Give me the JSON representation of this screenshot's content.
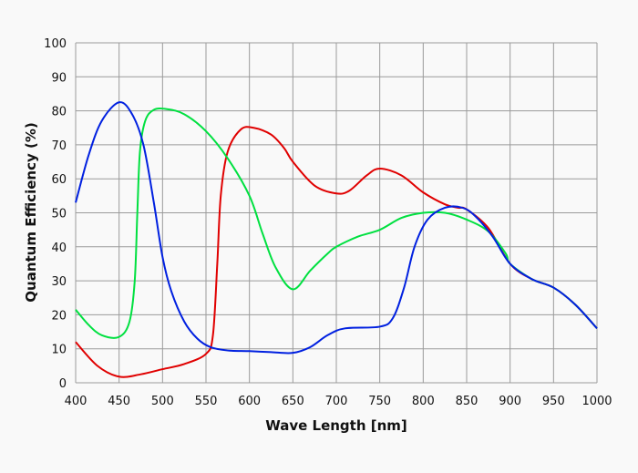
{
  "chart_data": {
    "type": "line",
    "title": "",
    "xlabel": "Wave Length [nm]",
    "ylabel": "Quantum Efficiency (%)",
    "xlim": [
      400,
      1000
    ],
    "ylim": [
      0,
      100
    ],
    "xticks": [
      400,
      450,
      500,
      550,
      600,
      650,
      700,
      750,
      800,
      850,
      900,
      950,
      1000
    ],
    "yticks": [
      0,
      10,
      20,
      30,
      40,
      50,
      60,
      70,
      80,
      90,
      100
    ],
    "grid": true,
    "legend": "none",
    "series": [
      {
        "color": "#e00000",
        "points": [
          [
            400,
            12
          ],
          [
            425,
            5
          ],
          [
            450,
            1.8
          ],
          [
            475,
            2.5
          ],
          [
            500,
            4
          ],
          [
            525,
            5.5
          ],
          [
            550,
            8.5
          ],
          [
            558,
            14
          ],
          [
            563,
            35
          ],
          [
            567,
            55
          ],
          [
            575,
            68
          ],
          [
            590,
            74.5
          ],
          [
            605,
            75
          ],
          [
            625,
            73
          ],
          [
            640,
            69
          ],
          [
            650,
            65
          ],
          [
            675,
            58
          ],
          [
            700,
            55.7
          ],
          [
            715,
            56.5
          ],
          [
            735,
            61
          ],
          [
            750,
            63
          ],
          [
            775,
            61
          ],
          [
            800,
            56
          ],
          [
            825,
            52.5
          ],
          [
            840,
            51.5
          ],
          [
            850,
            51
          ],
          [
            875,
            45.5
          ],
          [
            900,
            35
          ],
          [
            925,
            30.5
          ],
          [
            950,
            28
          ],
          [
            975,
            23
          ],
          [
            1000,
            16
          ]
        ]
      },
      {
        "color": "#00e040",
        "points": [
          [
            400,
            21.5
          ],
          [
            415,
            17
          ],
          [
            430,
            14
          ],
          [
            450,
            13.5
          ],
          [
            462,
            18
          ],
          [
            468,
            30
          ],
          [
            471,
            50
          ],
          [
            474,
            68
          ],
          [
            480,
            77
          ],
          [
            490,
            80.3
          ],
          [
            505,
            80.5
          ],
          [
            525,
            79
          ],
          [
            550,
            74
          ],
          [
            575,
            66
          ],
          [
            600,
            55
          ],
          [
            615,
            44
          ],
          [
            630,
            34
          ],
          [
            650,
            27.5
          ],
          [
            670,
            33
          ],
          [
            690,
            38
          ],
          [
            700,
            40
          ],
          [
            725,
            43
          ],
          [
            750,
            45
          ],
          [
            775,
            48.5
          ],
          [
            800,
            50
          ],
          [
            825,
            50
          ],
          [
            850,
            48
          ],
          [
            875,
            44.5
          ],
          [
            895,
            38
          ],
          [
            900,
            35
          ],
          [
            925,
            30.5
          ],
          [
            950,
            28
          ],
          [
            975,
            23
          ],
          [
            1000,
            16
          ]
        ]
      },
      {
        "color": "#0020e0",
        "points": [
          [
            400,
            53
          ],
          [
            415,
            67
          ],
          [
            430,
            77
          ],
          [
            450,
            82.5
          ],
          [
            465,
            79
          ],
          [
            478,
            70
          ],
          [
            490,
            53
          ],
          [
            500,
            37
          ],
          [
            510,
            27
          ],
          [
            525,
            18
          ],
          [
            540,
            13
          ],
          [
            555,
            10.5
          ],
          [
            575,
            9.5
          ],
          [
            600,
            9.3
          ],
          [
            625,
            9
          ],
          [
            650,
            8.8
          ],
          [
            670,
            10.5
          ],
          [
            690,
            14
          ],
          [
            710,
            16
          ],
          [
            750,
            16.5
          ],
          [
            765,
            19
          ],
          [
            778,
            28
          ],
          [
            790,
            40
          ],
          [
            805,
            48
          ],
          [
            825,
            51.5
          ],
          [
            845,
            51.5
          ],
          [
            860,
            49
          ],
          [
            880,
            43
          ],
          [
            900,
            35
          ],
          [
            925,
            30.5
          ],
          [
            950,
            28
          ],
          [
            975,
            23
          ],
          [
            1000,
            16
          ]
        ]
      }
    ]
  }
}
